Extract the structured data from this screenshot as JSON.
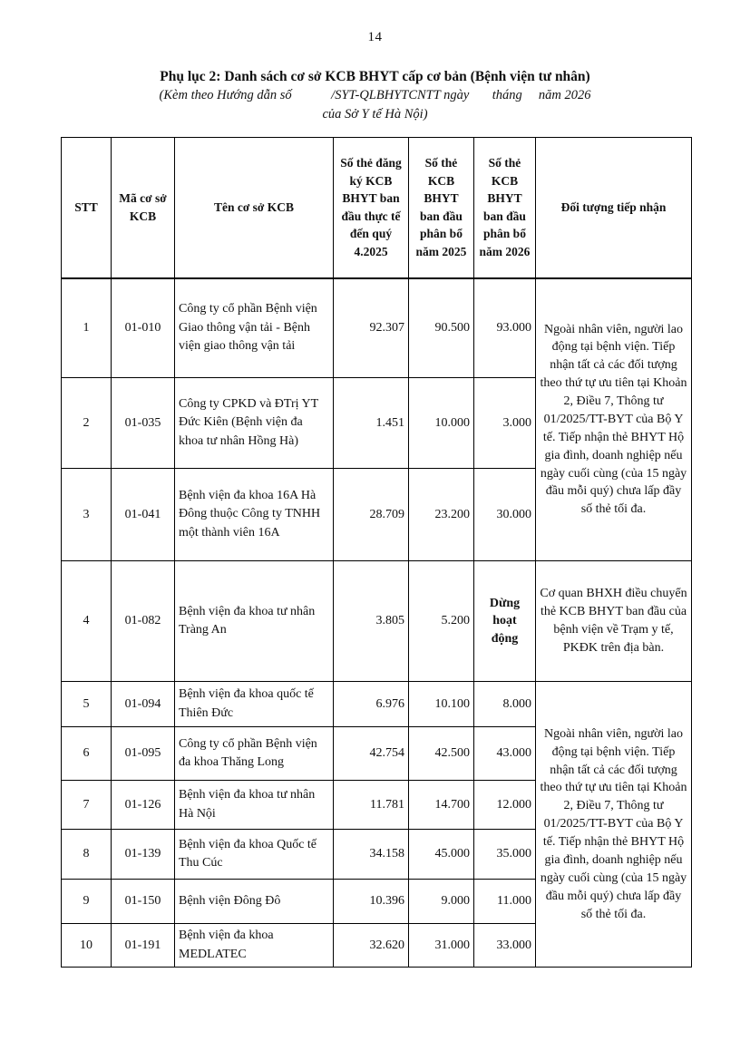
{
  "page": {
    "number": "14"
  },
  "header": {
    "title": "Phụ lục 2: Danh sách cơ sở KCB BHYT cấp cơ bản (Bệnh viện tư nhân)",
    "subtitle_line1": "(Kèm theo Hướng dẫn số            /SYT-QLBHYTCNTT ngày       tháng     năm 2026",
    "subtitle_line2": "của Sở Y tế Hà Nội)"
  },
  "table": {
    "headers": [
      "STT",
      "Mã cơ sở KCB",
      "Tên cơ sở KCB",
      "Số thẻ đăng ký KCB BHYT ban đầu thực tế đến quý 4.2025",
      "Số thẻ KCB BHYT ban đầu phân bổ năm 2025",
      "Số thẻ KCB BHYT ban đầu phân bổ năm 2026",
      "Đối tượng tiếp nhận"
    ],
    "rows": [
      {
        "stt": "1",
        "ma": "01-010",
        "ten": "Công ty cổ phần Bệnh viện Giao thông vận tải - Bệnh viện giao thông vận tải",
        "so_dang_ky": "92.307",
        "phan_bo_2025": "90.500",
        "phan_bo_2026": "93.000"
      },
      {
        "stt": "2",
        "ma": "01-035",
        "ten": "Công ty CPKD và ĐTrị YT Đức Kiên (Bệnh viện đa khoa tư nhân Hồng Hà)",
        "so_dang_ky": "1.451",
        "phan_bo_2025": "10.000",
        "phan_bo_2026": "3.000"
      },
      {
        "stt": "3",
        "ma": "01-041",
        "ten": "Bệnh viện đa khoa 16A Hà Đông thuộc Công ty TNHH một thành viên 16A",
        "so_dang_ky": "28.709",
        "phan_bo_2025": "23.200",
        "phan_bo_2026": "30.000"
      },
      {
        "stt": "4",
        "ma": "01-082",
        "ten": "Bệnh viện đa khoa tư nhân Tràng An",
        "so_dang_ky": "3.805",
        "phan_bo_2025": "5.200",
        "phan_bo_2026": "Dừng hoạt động"
      },
      {
        "stt": "5",
        "ma": "01-094",
        "ten": "Bệnh viện đa khoa quốc tế Thiên Đức",
        "so_dang_ky": "6.976",
        "phan_bo_2025": "10.100",
        "phan_bo_2026": "8.000"
      },
      {
        "stt": "6",
        "ma": "01-095",
        "ten": "Công ty cổ phần Bệnh viện đa khoa Thăng Long",
        "so_dang_ky": "42.754",
        "phan_bo_2025": "42.500",
        "phan_bo_2026": "43.000"
      },
      {
        "stt": "7",
        "ma": "01-126",
        "ten": "Bệnh viện đa khoa tư nhân Hà Nội",
        "so_dang_ky": "11.781",
        "phan_bo_2025": "14.700",
        "phan_bo_2026": "12.000"
      },
      {
        "stt": "8",
        "ma": "01-139",
        "ten": "Bệnh viện đa khoa Quốc tế Thu Cúc",
        "so_dang_ky": "34.158",
        "phan_bo_2025": "45.000",
        "phan_bo_2026": "35.000"
      },
      {
        "stt": "9",
        "ma": "01-150",
        "ten": "Bệnh viện Đông Đô",
        "so_dang_ky": "10.396",
        "phan_bo_2025": "9.000",
        "phan_bo_2026": "11.000"
      },
      {
        "stt": "10",
        "ma": "01-191",
        "ten": "Bệnh viện đa khoa MEDLATEC",
        "so_dang_ky": "32.620",
        "phan_bo_2025": "31.000",
        "phan_bo_2026": "33.000"
      }
    ],
    "notes": {
      "rows_1_3": "Ngoài nhân viên, người lao động tại bệnh viện. Tiếp nhận tất cả các đối tượng theo thứ tự ưu tiên tại Khoản 2, Điều 7, Thông tư 01/2025/TT-BYT của Bộ Y tế. Tiếp nhận thẻ BHYT Hộ gia đình, doanh nghiệp nếu ngày cuối cùng (của 15 ngày đầu mỗi quý) chưa lấp đầy số thẻ tối đa.",
      "row_4": "Cơ quan BHXH điều chuyển thẻ KCB BHYT ban đầu của bệnh viện về Trạm y tế, PKĐK trên địa bàn.",
      "rows_5_10": "Ngoài nhân viên, người lao động tại bệnh viện. Tiếp nhận tất cả các đối tượng theo thứ tự ưu tiên tại Khoản 2, Điều 7, Thông tư 01/2025/TT-BYT của Bộ Y tế. Tiếp nhận thẻ BHYT Hộ gia đình, doanh nghiệp nếu ngày cuối cùng (của 15 ngày đầu mỗi quý) chưa lấp đầy số thẻ tối đa."
    }
  },
  "colors": {
    "text": "#111111",
    "border": "#000000",
    "background": "#ffffff"
  }
}
